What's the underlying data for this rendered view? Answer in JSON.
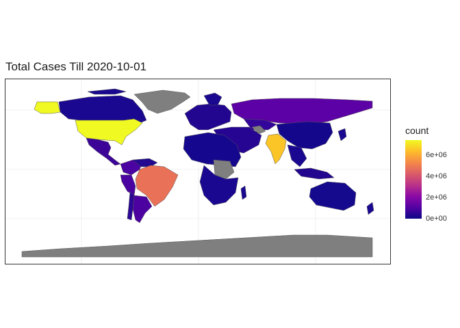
{
  "title": "Total Cases Till 2020-10-01",
  "legend": {
    "title": "count",
    "labels": [
      "6e+06",
      "4e+06",
      "2e+06",
      "0e+00"
    ],
    "values": [
      6000000,
      4000000,
      2000000,
      0
    ],
    "max": 7400000,
    "palette": [
      "#0d0887",
      "#5402a3",
      "#8b0aa5",
      "#b93289",
      "#db5c68",
      "#f48849",
      "#febd2a",
      "#f0f921"
    ]
  },
  "map": {
    "no_data_color": "#7f7f7f",
    "countries": [
      {
        "name": "United States",
        "value": 7300000
      },
      {
        "name": "India",
        "value": 6300000
      },
      {
        "name": "Brazil",
        "value": 4800000
      },
      {
        "name": "Russia",
        "value": 1180000
      },
      {
        "name": "Colombia",
        "value": 830000
      },
      {
        "name": "Peru",
        "value": 810000
      },
      {
        "name": "Mexico",
        "value": 740000
      },
      {
        "name": "Argentina",
        "value": 750000
      },
      {
        "name": "Canada",
        "value": 160000
      },
      {
        "name": "China",
        "value": 90000
      },
      {
        "name": "Australia",
        "value": 27000
      }
    ]
  }
}
